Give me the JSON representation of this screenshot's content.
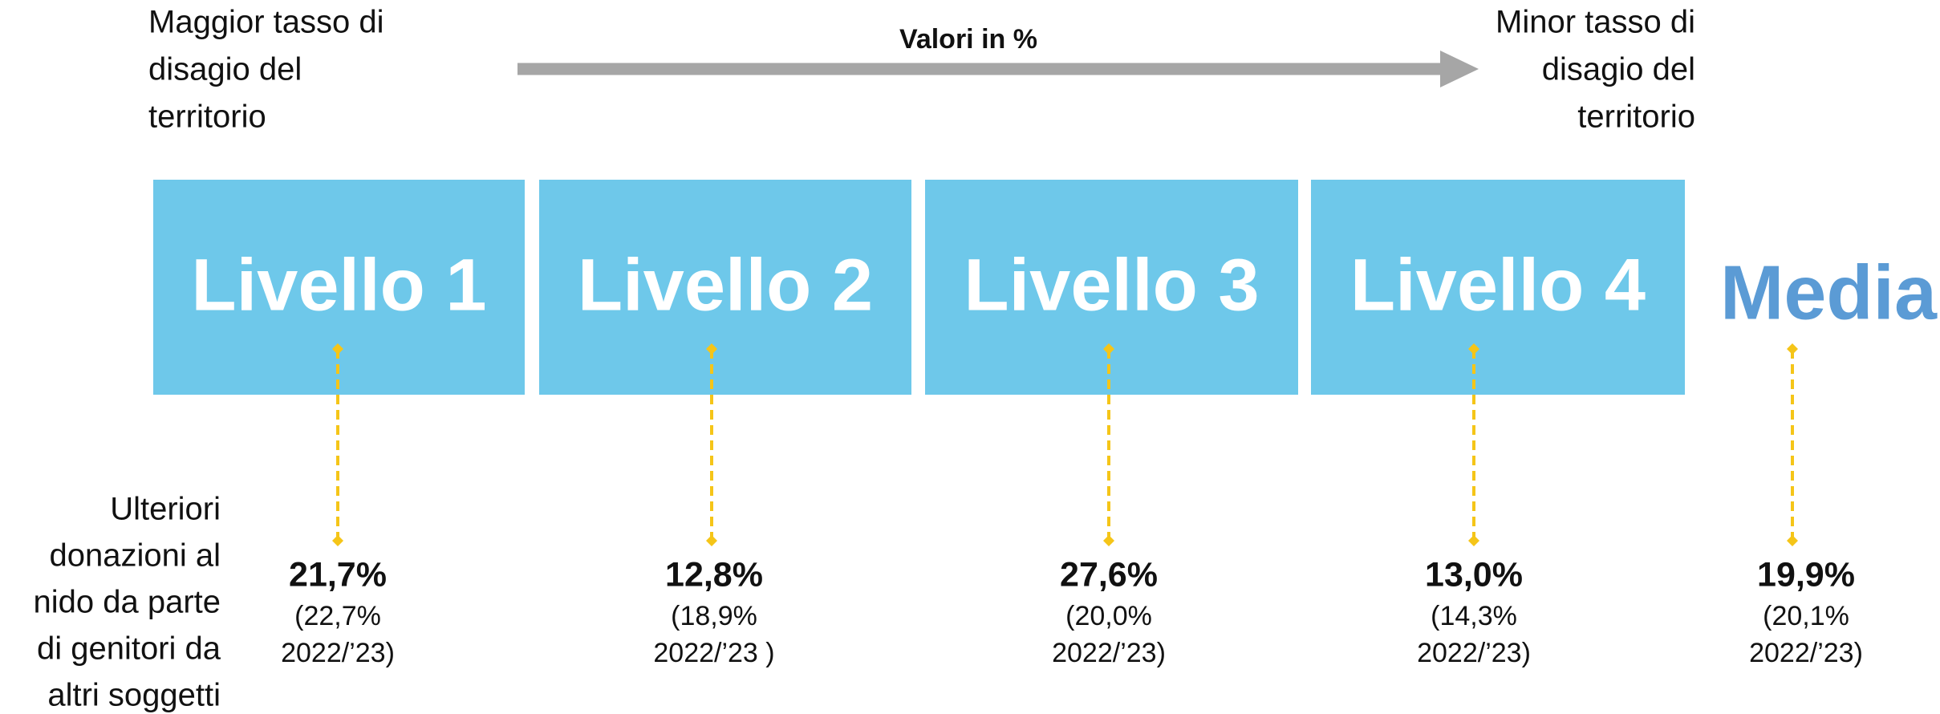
{
  "header": {
    "left_note": [
      "Maggior tasso di",
      "disagio del",
      "territorio"
    ],
    "arrow_label": "Valori in %",
    "right_note": [
      "Minor tasso di",
      "disagio del",
      "territorio"
    ]
  },
  "row_label": [
    "Ulteriori",
    "donazioni al",
    "nido da parte",
    "di genitori da",
    "altri soggetti"
  ],
  "levels": [
    {
      "label": "Livello 1",
      "value": "21,7%",
      "previous": [
        "(22,7%",
        "2022/’23)"
      ]
    },
    {
      "label": "Livello 2",
      "value": "12,8%",
      "previous": [
        "(18,9%",
        "2022/’23 )"
      ]
    },
    {
      "label": "Livello 3",
      "value": "27,6%",
      "previous": [
        "(20,0%",
        "2022/’23)"
      ]
    },
    {
      "label": "Livello 4",
      "value": "13,0%",
      "previous": [
        "(14,3%",
        "2022/’23)"
      ]
    }
  ],
  "average": {
    "label": "Media",
    "value": "19,9%",
    "previous": [
      "(20,1%",
      "2022/’23)"
    ]
  }
}
